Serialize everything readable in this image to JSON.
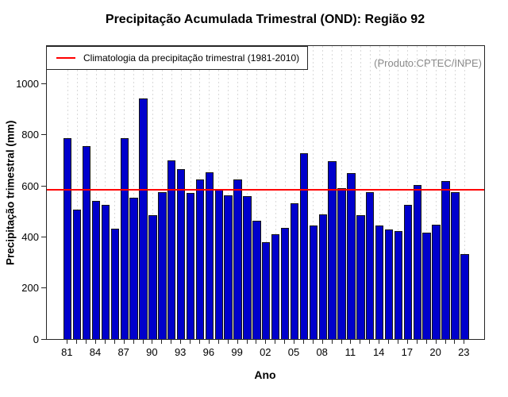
{
  "title": "Precipitação Acumulada Trimestral (OND): Região 92",
  "watermark": "(Produto:CPTEC/INPE)",
  "legend": {
    "label": "Climatologia da precipitação trimestral (1981-2010)"
  },
  "colors": {
    "bar_fill": "#0000CC",
    "bar_border": "#141414",
    "climatology_line": "#FF0000",
    "grid_line": "#D9D9D9",
    "watermark_text": "#8A8A8A",
    "axis": "#262626"
  },
  "chart_data": {
    "type": "bar",
    "title": "Precipitação Acumulada Trimestral (OND): Região 92",
    "xlabel": "Ano",
    "ylabel": "Precipitação trimestral (mm)",
    "ylim": [
      0,
      1147
    ],
    "yticks": [
      0,
      200,
      400,
      600,
      800,
      1000
    ],
    "grid": "vertical-dashed",
    "legend_position": "topleft",
    "x_tick_label_every": 3,
    "categories": [
      "81",
      "82",
      "83",
      "84",
      "85",
      "86",
      "87",
      "88",
      "89",
      "90",
      "91",
      "92",
      "93",
      "94",
      "95",
      "96",
      "97",
      "98",
      "99",
      "00",
      "01",
      "02",
      "03",
      "04",
      "05",
      "06",
      "07",
      "08",
      "09",
      "10",
      "11",
      "12",
      "13",
      "14",
      "15",
      "16",
      "17",
      "18",
      "19",
      "20",
      "21",
      "22",
      "23"
    ],
    "values": [
      787,
      507,
      757,
      540,
      527,
      432,
      787,
      553,
      942,
      486,
      574,
      698,
      665,
      573,
      625,
      654,
      589,
      563,
      625,
      560,
      462,
      378,
      411,
      434,
      532,
      727,
      445,
      488,
      696,
      592,
      651,
      486,
      575,
      445,
      429,
      424,
      527,
      602,
      417,
      448,
      618,
      574,
      334
    ],
    "climatology_value": 586
  }
}
